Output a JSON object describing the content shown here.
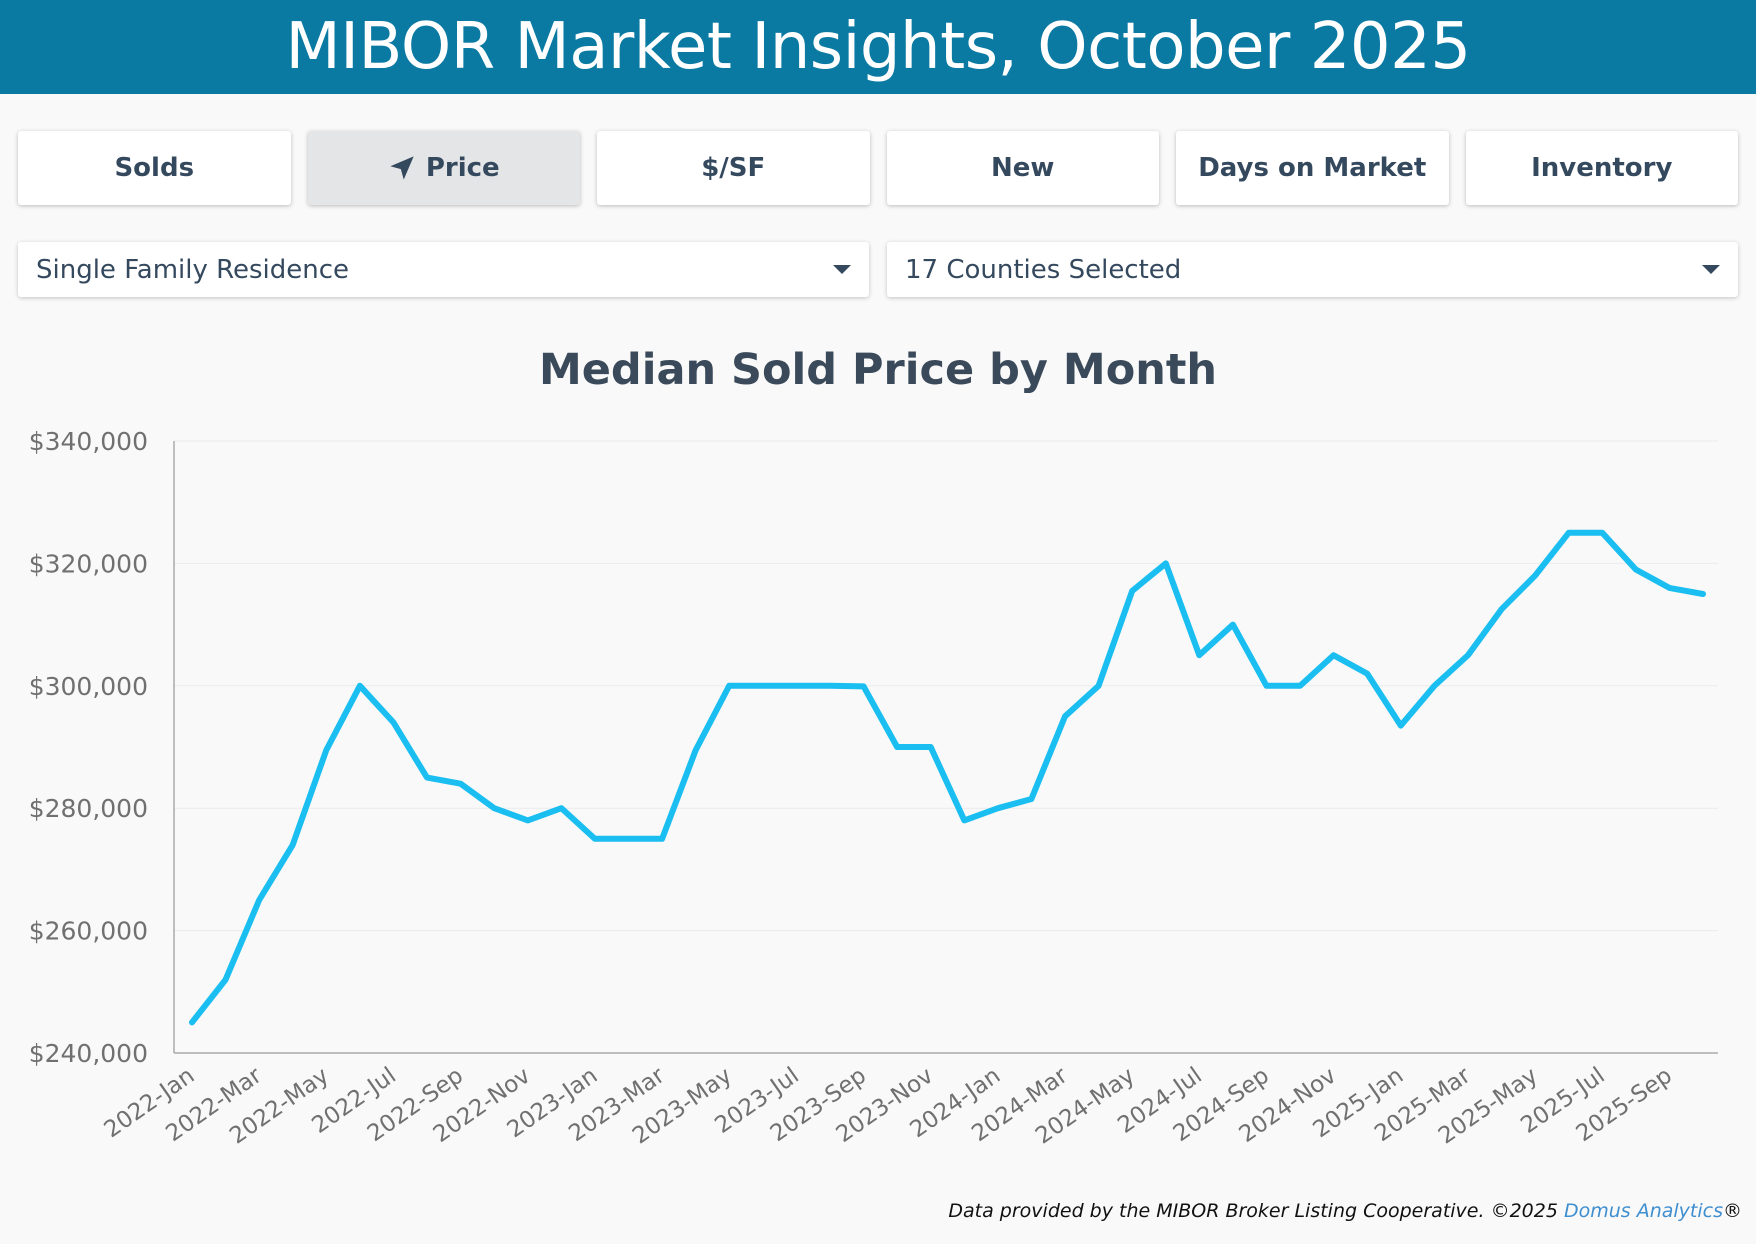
{
  "header": {
    "title": "MIBOR Market Insights, October 2025"
  },
  "tabs": [
    {
      "label": "Solds",
      "active": false
    },
    {
      "label": "Price",
      "active": true,
      "icon": "location-arrow-icon"
    },
    {
      "label": "$/SF",
      "active": false
    },
    {
      "label": "New",
      "active": false
    },
    {
      "label": "Days on Market",
      "active": false
    },
    {
      "label": "Inventory",
      "active": false
    }
  ],
  "filters": {
    "property_type": "Single Family Residence",
    "counties": "17 Counties Selected"
  },
  "colors": {
    "header": "#0b7aa3",
    "line": "#1abef0",
    "brand": "#3e8ed0"
  },
  "chart_data": {
    "type": "line",
    "title": "Median Sold Price by Month",
    "xlabel": "",
    "ylabel": "",
    "ylim": [
      240000,
      340000
    ],
    "yticks": [
      240000,
      260000,
      280000,
      300000,
      320000,
      340000
    ],
    "ytick_labels": [
      "$240,000",
      "$260,000",
      "$280,000",
      "$300,000",
      "$320,000",
      "$340,000"
    ],
    "x": [
      "2022-Jan",
      "2022-Feb",
      "2022-Mar",
      "2022-Apr",
      "2022-May",
      "2022-Jun",
      "2022-Jul",
      "2022-Aug",
      "2022-Sep",
      "2022-Oct",
      "2022-Nov",
      "2022-Dec",
      "2023-Jan",
      "2023-Feb",
      "2023-Mar",
      "2023-Apr",
      "2023-May",
      "2023-Jun",
      "2023-Jul",
      "2023-Aug",
      "2023-Sep",
      "2023-Oct",
      "2023-Nov",
      "2023-Dec",
      "2024-Jan",
      "2024-Feb",
      "2024-Mar",
      "2024-Apr",
      "2024-May",
      "2024-Jun",
      "2024-Jul",
      "2024-Aug",
      "2024-Sep",
      "2024-Oct",
      "2024-Nov",
      "2024-Dec",
      "2025-Jan",
      "2025-Feb",
      "2025-Mar",
      "2025-Apr",
      "2025-May",
      "2025-Jun",
      "2025-Jul",
      "2025-Aug",
      "2025-Sep",
      "2025-Oct"
    ],
    "xtick_labels": [
      "2022-Jan",
      "2022-Mar",
      "2022-May",
      "2022-Jul",
      "2022-Sep",
      "2022-Nov",
      "2023-Jan",
      "2023-Mar",
      "2023-May",
      "2023-Jul",
      "2023-Sep",
      "2023-Nov",
      "2024-Jan",
      "2024-Mar",
      "2024-May",
      "2024-Jul",
      "2024-Sep",
      "2024-Nov",
      "2025-Jan",
      "2025-Mar",
      "2025-May",
      "2025-Jul",
      "2025-Sep"
    ],
    "series": [
      {
        "name": "Median Sold Price",
        "values": [
          245000,
          252000,
          265000,
          274000,
          289500,
          300000,
          294000,
          285000,
          284000,
          280000,
          278000,
          280000,
          275000,
          275000,
          275000,
          289500,
          300000,
          300000,
          300000,
          300000,
          299900,
          290000,
          290000,
          278000,
          280000,
          281500,
          295000,
          300000,
          315500,
          320000,
          305000,
          310000,
          300000,
          300000,
          305000,
          302000,
          293500,
          300000,
          305000,
          312500,
          318000,
          325000,
          325000,
          319000,
          316000,
          315000
        ]
      }
    ],
    "grid": true,
    "legend": "none"
  },
  "footer": {
    "text": "Data provided by the MIBOR Broker Listing Cooperative.  ©2025 ",
    "brand": "Domus Analytics",
    "trademark": "®"
  }
}
